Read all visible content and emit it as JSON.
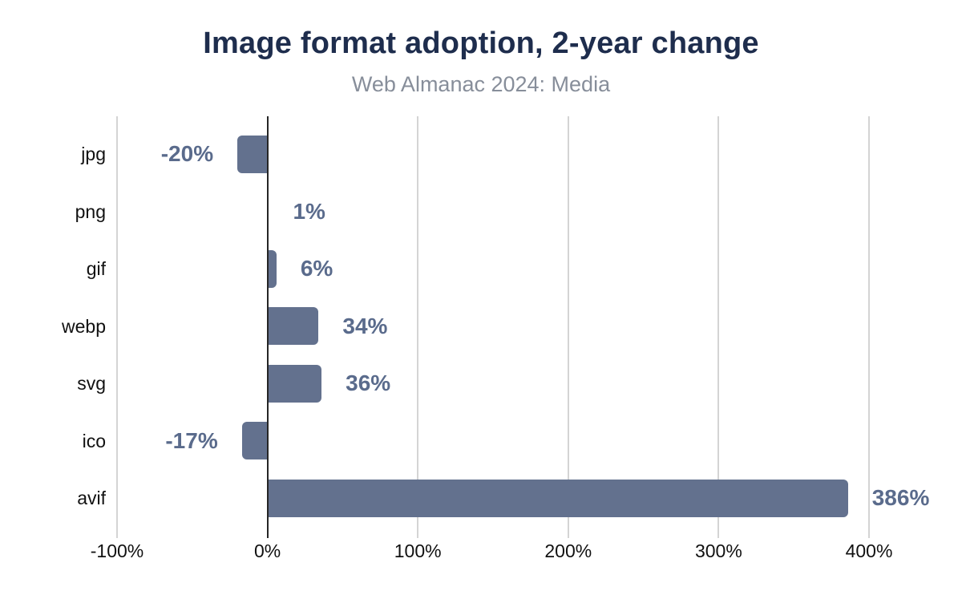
{
  "header": {
    "title": "Image format adoption, 2-year change",
    "subtitle": "Web Almanac 2024: Media"
  },
  "chart_data": {
    "type": "bar",
    "orientation": "horizontal",
    "title": "Image format adoption, 2-year change",
    "subtitle": "Web Almanac 2024: Media",
    "categories": [
      "jpg",
      "png",
      "gif",
      "webp",
      "svg",
      "ico",
      "avif"
    ],
    "values": [
      -20,
      1,
      6,
      34,
      36,
      -17,
      386
    ],
    "value_labels": [
      "-20%",
      "1%",
      "6%",
      "34%",
      "36%",
      "-17%",
      "386%"
    ],
    "xlabel": "",
    "ylabel": "",
    "xlim": [
      -100,
      450
    ],
    "x_ticks": [
      {
        "value": -100,
        "label": "-100%"
      },
      {
        "value": 0,
        "label": "0%"
      },
      {
        "value": 100,
        "label": "100%"
      },
      {
        "value": 200,
        "label": "200%"
      },
      {
        "value": 300,
        "label": "300%"
      },
      {
        "value": 400,
        "label": "400%"
      }
    ],
    "grid": "vertical-gridlines-on",
    "legend": "none",
    "colors": {
      "bar": "#63718e",
      "value_label": "#5a6b8c",
      "title": "#1e2d4d",
      "subtitle": "#878e9a",
      "gridline": "#d4d4d4",
      "axis_line": "#262626",
      "tick_label": "#111111",
      "category_label": "#111111",
      "background": "#ffffff"
    }
  }
}
